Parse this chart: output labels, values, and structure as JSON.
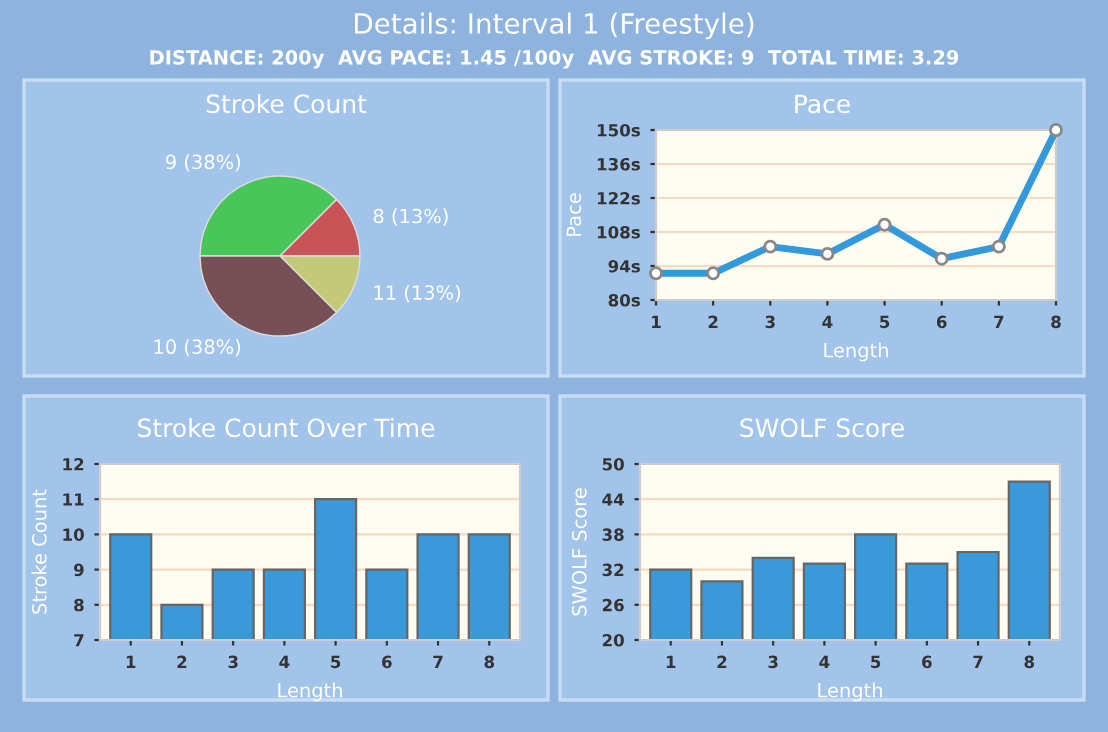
{
  "chart_data": [
    {
      "type": "other",
      "title": "Details: Interval 1 (Freestyle)",
      "subtitle": "DISTANCE: 200y  AVG PACE: 1.45 /100y  AVG STROKE: 9  TOTAL TIME: 3.29"
    },
    {
      "type": "pie",
      "title": "Stroke Count",
      "categories": [
        null,
        null,
        null,
        null
      ],
      "values": [
        37.5,
        12.5,
        12.5,
        37.5
      ],
      "colors": [
        "#47c75a",
        "#c85458",
        "#c2c978",
        "#774f57"
      ],
      "value_labels": [
        "9 (38%)",
        "8 (13%)",
        "11 (13%)",
        "10 (38%)"
      ],
      "legend": false
    },
    {
      "type": "line",
      "title": "Pace",
      "xlabel": "Length",
      "ylabel": "Pace",
      "x": [
        1,
        2,
        3,
        4,
        5,
        6,
        7,
        8
      ],
      "series": [
        {
          "color": "#3399dd",
          "values": [
            91,
            91,
            102,
            99,
            111,
            97,
            102,
            150
          ]
        }
      ],
      "xlim": [
        1,
        8
      ],
      "xticks": [
        1,
        2,
        3,
        4,
        5,
        6,
        7,
        8
      ],
      "ylim": [
        80,
        150
      ],
      "yticks": [
        {
          "value": 80,
          "label": "80s"
        },
        {
          "value": 94,
          "label": "94s"
        },
        {
          "value": 108,
          "label": "108s"
        },
        {
          "value": 122,
          "label": "122s"
        },
        {
          "value": 136,
          "label": "136s"
        },
        {
          "value": 150,
          "label": "150s"
        }
      ],
      "grid": "y",
      "marker": "circle",
      "line_style": "solid",
      "legend": false
    },
    {
      "type": "bar",
      "title": "Stroke Count Over Time",
      "xlabel": "Length",
      "ylabel": "Stroke Count",
      "categories": [
        "1",
        "2",
        "3",
        "4",
        "5",
        "6",
        "7",
        "8"
      ],
      "series": [
        {
          "color": "#3a9ad9",
          "values": [
            10,
            8,
            9,
            9,
            11,
            9,
            10,
            10
          ]
        }
      ],
      "ylim": [
        7,
        12
      ],
      "yticks": [
        7,
        8,
        9,
        10,
        11,
        12
      ],
      "grid": "y",
      "legend": false
    },
    {
      "type": "bar",
      "title": "SWOLF Score",
      "xlabel": "Length",
      "ylabel": "SWOLF Score",
      "categories": [
        "1",
        "2",
        "3",
        "4",
        "5",
        "6",
        "7",
        "8"
      ],
      "series": [
        {
          "color": "#3a9ad9",
          "values": [
            32,
            30,
            34,
            33,
            38,
            33,
            35,
            47
          ]
        }
      ],
      "ylim": [
        20,
        50
      ],
      "yticks": [
        20,
        26,
        32,
        38,
        44,
        50
      ],
      "grid": "y",
      "legend": false
    }
  ]
}
